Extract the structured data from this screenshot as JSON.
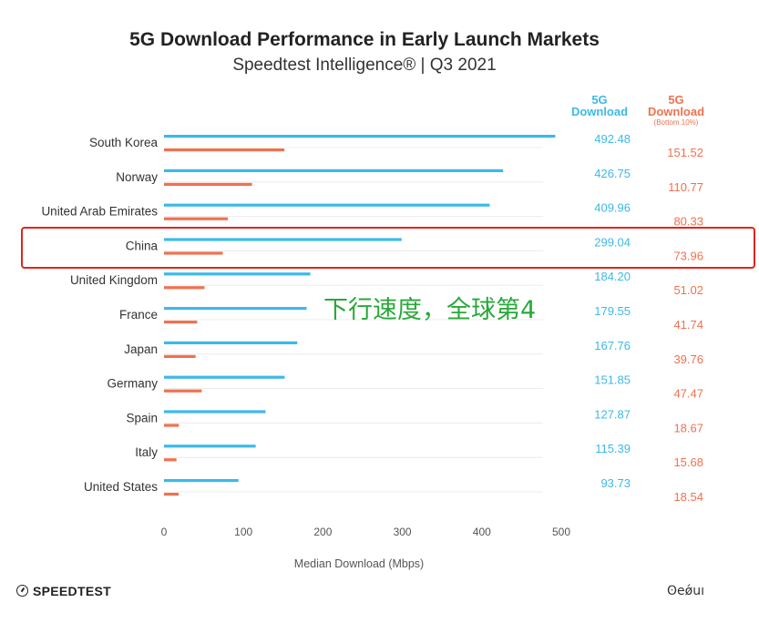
{
  "title": "5G Download Performance in Early Launch Markets",
  "subtitle": "Speedtest Intelligence® | Q3 2021",
  "column_headers": {
    "col1_line1": "5G",
    "col1_line2": "Download",
    "col2_line1": "5G",
    "col2_line2": "Download",
    "col2_sub": "(Bottom 10%)"
  },
  "colors": {
    "primary": "#3cb9e8",
    "secondary": "#f0714f",
    "highlight": "#e0241c",
    "annotation": "#29a83a"
  },
  "annotation": "下行速度，全球第4",
  "footer": {
    "left_logo": "SPEEDTEST",
    "right_watermark": "ʘeǿuı"
  },
  "chart_data": {
    "type": "bar",
    "orientation": "horizontal",
    "categories": [
      "South Korea",
      "Norway",
      "United Arab Emirates",
      "China",
      "United Kingdom",
      "France",
      "Japan",
      "Germany",
      "Spain",
      "Italy",
      "United States"
    ],
    "series": [
      {
        "name": "5G Download",
        "values": [
          492.48,
          426.75,
          409.96,
          299.04,
          184.2,
          179.55,
          167.76,
          151.85,
          127.87,
          115.39,
          93.73
        ]
      },
      {
        "name": "5G Download (Bottom 10%)",
        "values": [
          151.52,
          110.77,
          80.33,
          73.96,
          51.02,
          41.74,
          39.76,
          47.47,
          18.67,
          15.68,
          18.54
        ]
      }
    ],
    "value_labels": {
      "primary": [
        "492.48",
        "426.75",
        "409.96",
        "299.04",
        "184.20",
        "179.55",
        "167.76",
        "151.85",
        "127.87",
        "115.39",
        "93.73"
      ],
      "secondary": [
        "151.52",
        "110.77",
        "80.33",
        "73.96",
        "51.02",
        "41.74",
        "39.76",
        "47.47",
        "18.67",
        "15.68",
        "18.54"
      ]
    },
    "xlabel": "Median Download (Mbps)",
    "xticks": [
      "0",
      "100",
      "200",
      "300",
      "400",
      "500"
    ],
    "xlim": [
      0,
      500
    ],
    "highlighted_category": "China"
  }
}
